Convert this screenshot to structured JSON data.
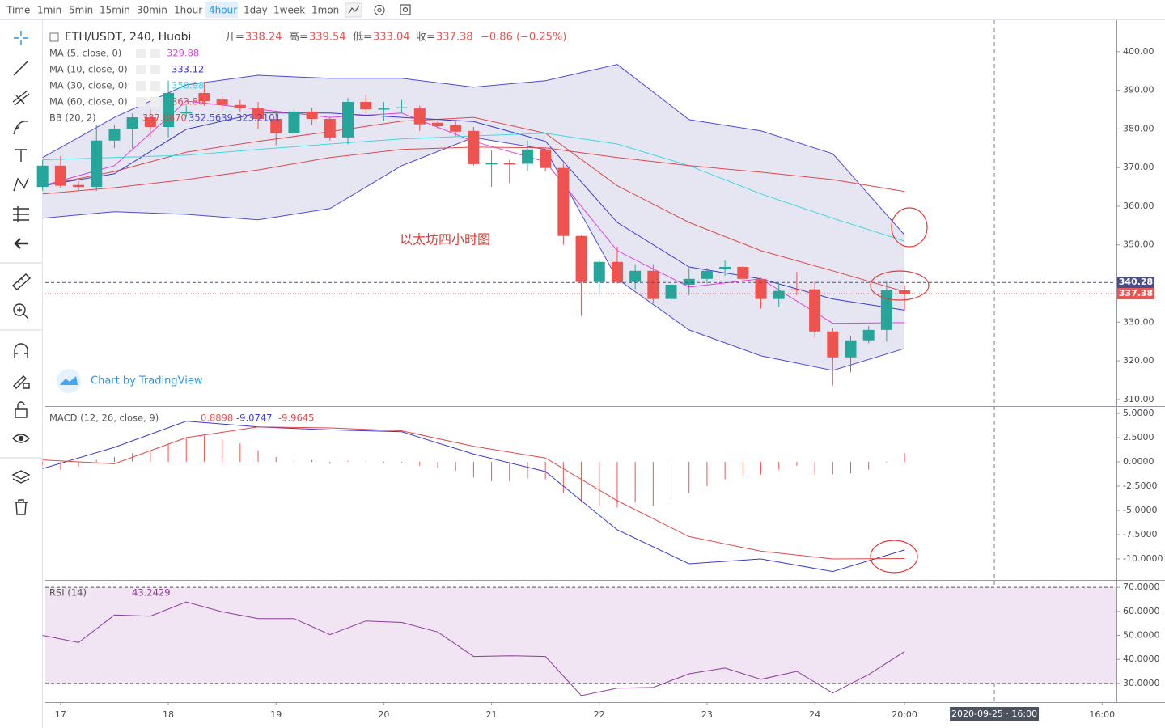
{
  "toolbar": {
    "intervals": [
      "Time",
      "1min",
      "5min",
      "15min",
      "30min",
      "1hour",
      "4hour",
      "1day",
      "1week",
      "1mon"
    ],
    "active_index": 6
  },
  "header": {
    "symbol": "ETH/USDT, 240, Huobi",
    "ohlc": [
      {
        "label": "开=",
        "value": "338.24"
      },
      {
        "label": "高=",
        "value": "339.54"
      },
      {
        "label": "低=",
        "value": "333.04"
      },
      {
        "label": "收=",
        "value": "337.38"
      }
    ],
    "change": "−0.86 (−0.25%)"
  },
  "watermark": "Chart by TradingView",
  "chart_data": [
    {
      "type": "candlestick",
      "annotation": "以太坊四小时图",
      "up_color": "#26a69a",
      "down_color": "#ef5350",
      "grid": false,
      "x": [
        0,
        1,
        2,
        3,
        4,
        5,
        6,
        7,
        8,
        9,
        10,
        11,
        12,
        13,
        14,
        15,
        16,
        17,
        18,
        19,
        20,
        21,
        22,
        23,
        24,
        25,
        26,
        27,
        28,
        29,
        30,
        31,
        32,
        33,
        34,
        35,
        36,
        37,
        38,
        39,
        40,
        41,
        42,
        43,
        44,
        45,
        46,
        47,
        48
      ],
      "open": [
        365,
        370.5,
        365.5,
        365,
        377,
        380,
        383,
        380.5,
        384,
        389.3,
        387.6,
        386.2,
        385.3,
        382.6,
        378.9,
        384.5,
        382.6,
        377.8,
        387,
        385,
        385.4,
        385.3,
        381.6,
        381,
        379.5,
        370.8,
        371.2,
        371,
        374.7,
        369.9,
        352.3,
        340.4,
        345.6,
        340.4,
        343.3,
        336,
        339.7,
        341.2,
        343.7,
        344.3,
        341.2,
        336,
        338.5,
        338.5,
        327.6,
        320.9,
        325.3,
        328,
        338.24
      ],
      "high": [
        372,
        373,
        366.5,
        381,
        381,
        384,
        385,
        392.5,
        386,
        392,
        388.5,
        387.5,
        387,
        384,
        385,
        385.5,
        383,
        388,
        389,
        387,
        387.5,
        386,
        382,
        382,
        380.5,
        374.5,
        372,
        377,
        375,
        371,
        352.5,
        346,
        349.5,
        345,
        345,
        341,
        344,
        344,
        346,
        344.5,
        341.5,
        340,
        343,
        340.5,
        328.5,
        326.5,
        329,
        340.5,
        339.54
      ],
      "low": [
        364,
        364.8,
        364,
        364,
        375,
        375,
        378,
        377.8,
        383,
        386,
        385,
        384.5,
        380,
        375.8,
        378,
        381,
        377,
        376,
        384,
        382,
        384,
        379.5,
        380,
        378,
        370.5,
        365,
        366,
        369,
        369,
        350,
        331.6,
        337,
        340,
        338.5,
        335,
        335.5,
        337,
        340,
        342,
        340.5,
        333.5,
        334,
        337,
        326,
        313.6,
        317,
        324.5,
        325,
        333.04
      ],
      "close": [
        370.5,
        365.3,
        365,
        377,
        380,
        383,
        380.5,
        389.3,
        384.5,
        387.2,
        386.2,
        385.3,
        382.6,
        378.9,
        384.5,
        382.6,
        377.8,
        387,
        385.1,
        385.3,
        385.6,
        381.2,
        380.7,
        379.3,
        370.9,
        371.2,
        370.8,
        374.7,
        369.9,
        352.3,
        340.4,
        345.6,
        340.4,
        343.3,
        336,
        339.7,
        341.2,
        343.3,
        344.3,
        341.2,
        336,
        338.1,
        338.4,
        327.6,
        320.9,
        325.3,
        328,
        338.3,
        337.38
      ],
      "xlim": [
        0.15,
        59.8
      ],
      "ylim": [
        308.3,
        407.5
      ],
      "yticks": [
        {
          "value": 400,
          "label": "400.00"
        },
        {
          "value": 390,
          "label": "390.00"
        },
        {
          "value": 380,
          "label": "380.00"
        },
        {
          "value": 370,
          "label": "370.00"
        },
        {
          "value": 360,
          "label": "360.00"
        },
        {
          "value": 350,
          "label": "350.00"
        },
        {
          "value": 340,
          "label": "340.00"
        },
        {
          "value": 330,
          "label": "330.00"
        },
        {
          "value": 320,
          "label": "320.00"
        },
        {
          "value": 310,
          "label": "310.00"
        }
      ],
      "xticks": [
        {
          "value": 1,
          "label": "17"
        },
        {
          "value": 7,
          "label": "18"
        },
        {
          "value": 13,
          "label": "19"
        },
        {
          "value": 19,
          "label": "20"
        },
        {
          "value": 25,
          "label": "21"
        },
        {
          "value": 31,
          "label": "22"
        },
        {
          "value": 37,
          "label": "23"
        },
        {
          "value": 43,
          "label": "24"
        },
        {
          "value": 48,
          "label": "20:00"
        },
        {
          "value": 59,
          "label": "16:00"
        }
      ],
      "crosshair": {
        "value": 53,
        "label": "2020-09-25 · 16:00"
      },
      "price_labels": [
        {
          "value": 340.28,
          "color": "#4a4f8c"
        },
        {
          "value": 337.38,
          "color": "#ef5350"
        }
      ],
      "overlays": [
        {
          "name": "MA (5, close, 0)",
          "legend_value": "329.88",
          "color": "#e040e0",
          "x": [
            0,
            4,
            8,
            12,
            16,
            20,
            24,
            28,
            32,
            36,
            40,
            44,
            48
          ],
          "values": [
            365.3,
            370.5,
            387.2,
            385.1,
            383,
            384.1,
            376.8,
            371.5,
            348.5,
            339.1,
            341.2,
            329.7,
            329.88
          ]
        },
        {
          "name": "MA (10, close, 0)",
          "legend_value": "333.12",
          "color": "#3a3ad0",
          "x": [
            0,
            4,
            8,
            12,
            16,
            20,
            24,
            28,
            32,
            36,
            40,
            44,
            48
          ],
          "values": [
            365.3,
            368.4,
            379.9,
            384.1,
            384.1,
            383,
            381.9,
            376.8,
            355.8,
            344.3,
            341.2,
            336,
            333.12
          ]
        },
        {
          "name": "MA (30, close, 0)",
          "legend_value": "350.98",
          "color": "#3fd8e0",
          "x": [
            0,
            4,
            8,
            12,
            16,
            20,
            24,
            28,
            32,
            36,
            40,
            44,
            48
          ],
          "values": [
            372,
            372.6,
            373.2,
            374.7,
            376.1,
            377.4,
            378.2,
            378.9,
            376.1,
            370.5,
            363.2,
            356.9,
            350.98
          ]
        },
        {
          "name": "MA (60, close, 0)",
          "legend_value": "363.80",
          "color": "#e04848",
          "x": [
            0,
            4,
            8,
            12,
            16,
            20,
            24,
            28,
            32,
            36,
            40,
            44,
            48
          ],
          "values": [
            363.2,
            364.8,
            366.9,
            369.4,
            372.6,
            374.7,
            375.3,
            375.1,
            372.6,
            370.5,
            368.8,
            366.9,
            363.8
          ]
        }
      ],
      "bb": {
        "name": "BB (20, 2)",
        "readouts": [
          "337.8870",
          "352.5639",
          "323.2101"
        ],
        "band_color": "#4b4bd6",
        "basis_color": "#e04848",
        "fill": "#e6e6f3",
        "x": [
          0,
          4,
          8,
          12,
          16,
          20,
          24,
          28,
          32,
          36,
          40,
          44,
          48
        ],
        "basis": [
          365.3,
          369,
          374,
          376.8,
          379.3,
          382,
          383,
          378.9,
          365.3,
          355.8,
          348.5,
          343.3,
          337.887
        ],
        "upper": [
          372.6,
          383,
          391.4,
          393.9,
          393.1,
          393.1,
          390.8,
          392.5,
          396.7,
          382.4,
          379.5,
          373.6,
          352.5639
        ],
        "lower": [
          356.9,
          358.6,
          357.9,
          356.5,
          359.4,
          370.5,
          377.8,
          374.7,
          341.2,
          328,
          321.3,
          317.5,
          323.2101
        ]
      }
    },
    {
      "type": "macd",
      "name": "MACD (12, 26, close, 9)",
      "xlim": [
        0.15,
        59.8
      ],
      "ylim": [
        -12.17,
        5.67
      ],
      "yticks": [
        {
          "value": 5,
          "label": "5.0000"
        },
        {
          "value": 2.5,
          "label": "2.5000"
        },
        {
          "value": 0,
          "label": "0.0000"
        },
        {
          "value": -2.5,
          "label": "-2.5000"
        },
        {
          "value": -5,
          "label": "-5.0000"
        },
        {
          "value": -7.5,
          "label": "-7.5000"
        },
        {
          "value": -10,
          "label": "-10.0000"
        }
      ],
      "histogram": {
        "readout": "0.8898",
        "color": "#ef5350",
        "x": [
          0,
          1,
          2,
          3,
          4,
          5,
          6,
          7,
          8,
          9,
          10,
          11,
          12,
          13,
          14,
          15,
          16,
          17,
          18,
          19,
          20,
          21,
          22,
          23,
          24,
          25,
          26,
          27,
          28,
          29,
          30,
          31,
          32,
          33,
          34,
          35,
          36,
          37,
          38,
          39,
          40,
          41,
          42,
          43,
          44,
          45,
          46,
          47,
          48
        ],
        "values": [
          -0.3,
          -0.8,
          -0.5,
          0.2,
          0.5,
          0.9,
          1.1,
          1.9,
          2.5,
          2.7,
          2.3,
          1.9,
          1.2,
          0.5,
          0.3,
          0.2,
          -0.2,
          0.1,
          0.05,
          -0.1,
          -0.1,
          -0.4,
          -0.6,
          -0.9,
          -1.6,
          -2,
          -2,
          -1.7,
          -1.8,
          -3.2,
          -4.2,
          -4.5,
          -4.7,
          -4.2,
          -4.5,
          -3.8,
          -3.2,
          -2.5,
          -1.8,
          -1.4,
          -1.3,
          -0.8,
          -0.4,
          -1.3,
          -1.3,
          -1.2,
          -0.8,
          -0.1,
          0.8898
        ]
      },
      "macd": {
        "readout": "-9.0747",
        "color": "#3a3ad0",
        "x": [
          0,
          4,
          8,
          12,
          16,
          20,
          24,
          28,
          32,
          36,
          40,
          44,
          48
        ],
        "values": [
          -0.7,
          1.5,
          4.2,
          3.6,
          3.3,
          3.1,
          0.8,
          -1,
          -7,
          -10.5,
          -10,
          -11.3,
          -9.0747
        ]
      },
      "signal": {
        "readout": "-9.9645",
        "color": "#e04848",
        "x": [
          0,
          4,
          8,
          12,
          16,
          20,
          24,
          28,
          32,
          36,
          40,
          44,
          48
        ],
        "values": [
          0.2,
          -0.2,
          2.5,
          3.6,
          3.5,
          3.2,
          1.6,
          0.4,
          -4,
          -7.7,
          -9.2,
          -10,
          -9.9645
        ]
      }
    },
    {
      "type": "line",
      "name": "RSI (14)",
      "readout": "43.2429",
      "color": "#8e3a9e",
      "band": [
        30,
        70
      ],
      "band_color": "#f1e4f3",
      "xlim": [
        0.15,
        59.8
      ],
      "ylim": [
        22.2,
        72.4
      ],
      "yticks": [
        {
          "value": 70,
          "label": "70.0000"
        },
        {
          "value": 60,
          "label": "60.0000"
        },
        {
          "value": 50,
          "label": "50.0000"
        },
        {
          "value": 40,
          "label": "40.0000"
        },
        {
          "value": 30,
          "label": "30.0000"
        }
      ],
      "x": [
        0,
        2,
        4,
        6,
        8,
        10,
        12,
        14,
        16,
        18,
        20,
        22,
        24,
        26,
        28,
        30,
        32,
        34,
        36,
        38,
        40,
        42,
        44,
        46,
        48
      ],
      "values": [
        50,
        47,
        58.5,
        58,
        63.9,
        59.8,
        57,
        57,
        50.3,
        56,
        55.4,
        51.4,
        41.2,
        41.5,
        41.2,
        24.9,
        28,
        28.3,
        34,
        36.4,
        31.7,
        35,
        26,
        33.7,
        43.24
      ]
    }
  ]
}
